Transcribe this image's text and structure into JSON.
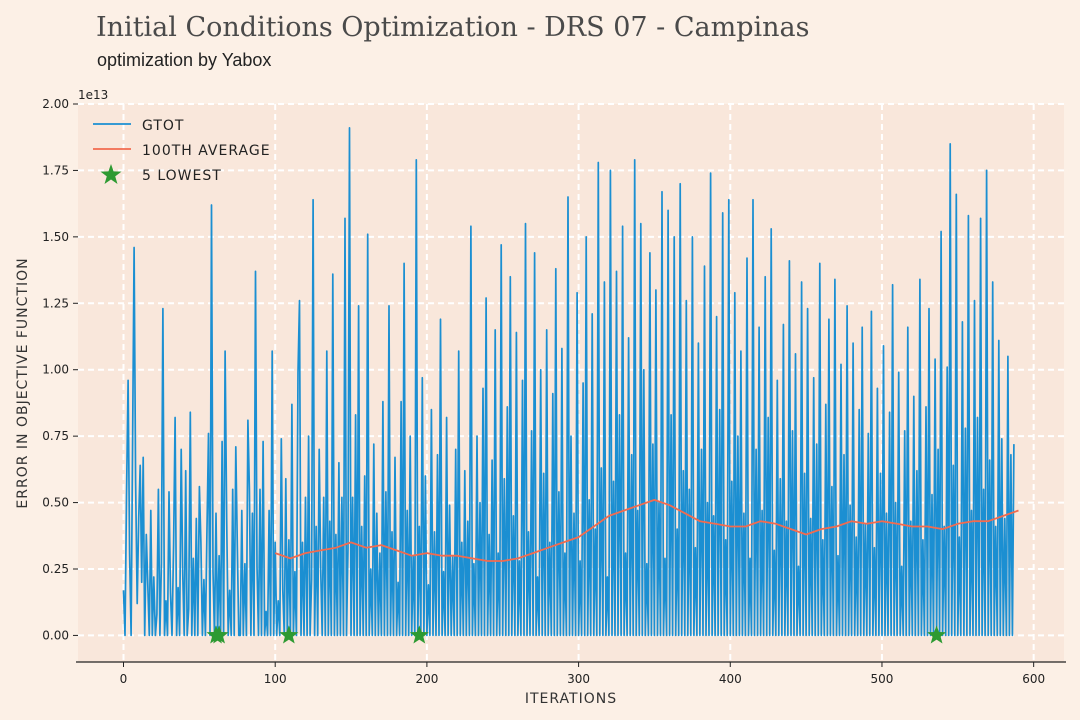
{
  "header": {
    "title": "Initial Conditions Optimization - DRS 07 - Campinas",
    "subtitle": "optimization by Yabox"
  },
  "colors": {
    "background": "#fcf0e6",
    "plot_area": "#f9e7db",
    "grid": "#ffffff",
    "gtot": "#1b8fd2",
    "average": "#f26b4f",
    "lowest": "#2e9a32"
  },
  "chart_data": {
    "type": "line",
    "xlabel": "ITERATIONS",
    "ylabel": "ERROR IN OBJECTIVE FUNCTION",
    "y_offset_label": "1e13",
    "xlim": [
      -30,
      620
    ],
    "ylim": [
      -0.1,
      2.0
    ],
    "xticks": [
      0,
      100,
      200,
      300,
      400,
      500,
      600
    ],
    "xtick_labels": [
      "0",
      "100",
      "200",
      "300",
      "400",
      "500",
      "600"
    ],
    "yticks": [
      0.0,
      0.25,
      0.5,
      0.75,
      1.0,
      1.25,
      1.5,
      1.75,
      2.0
    ],
    "ytick_labels": [
      "0.00",
      "0.25",
      "0.50",
      "0.75",
      "1.00",
      "1.25",
      "1.50",
      "1.75",
      "2.00"
    ],
    "grid": true,
    "legend_position": "top-left",
    "series": [
      {
        "name": "GTOT",
        "kind": "line",
        "color": "#1b8fd2",
        "x_start": 0,
        "x_step": 1,
        "values": [
          0.17,
          0.0,
          0.52,
          0.96,
          0.31,
          0.0,
          0.73,
          1.46,
          0.58,
          0.12,
          0.44,
          0.64,
          0.2,
          0.67,
          0.0,
          0.38,
          0.19,
          0.0,
          0.47,
          0.0,
          0.22,
          0.0,
          0.08,
          0.55,
          0.0,
          0.27,
          1.23,
          0.0,
          0.13,
          0.0,
          0.54,
          0.16,
          0.0,
          0.34,
          0.82,
          0.0,
          0.18,
          0.0,
          0.7,
          0.24,
          0.0,
          0.62,
          0.0,
          0.1,
          0.84,
          0.0,
          0.29,
          0.0,
          0.44,
          0.0,
          0.56,
          0.35,
          0.0,
          0.21,
          0.0,
          0.38,
          0.76,
          0.0,
          1.62,
          0.24,
          0.0,
          0.46,
          0.0,
          0.3,
          0.0,
          0.73,
          0.0,
          1.07,
          0.43,
          0.0,
          0.17,
          0.0,
          0.55,
          0.0,
          0.71,
          0.34,
          0.0,
          0.0,
          0.47,
          0.0,
          0.27,
          0.0,
          0.81,
          0.55,
          0.0,
          0.46,
          0.0,
          1.37,
          0.26,
          0.0,
          0.55,
          0.0,
          0.73,
          0.0,
          0.09,
          0.0,
          0.47,
          0.0,
          1.07,
          0.0,
          0.35,
          0.0,
          0.13,
          0.0,
          0.74,
          0.17,
          0.0,
          0.59,
          0.0,
          0.36,
          0.0,
          0.87,
          0.0,
          0.24,
          0.0,
          0.99,
          1.26,
          0.0,
          0.35,
          0.0,
          0.52,
          0.0,
          0.75,
          0.0,
          0.21,
          1.64,
          0.0,
          0.41,
          0.0,
          0.7,
          0.25,
          0.0,
          0.52,
          0.0,
          1.07,
          0.0,
          0.43,
          0.0,
          1.36,
          0.0,
          0.38,
          0.0,
          0.65,
          0.0,
          0.52,
          0.0,
          1.57,
          0.0,
          0.33,
          1.91,
          0.0,
          0.52,
          0.0,
          0.83,
          0.0,
          1.24,
          0.0,
          0.41,
          0.0,
          0.6,
          0.0,
          1.51,
          0.0,
          0.25,
          0.0,
          0.72,
          0.0,
          0.46,
          0.0,
          0.31,
          0.0,
          0.88,
          0.0,
          0.54,
          0.0,
          1.24,
          0.0,
          0.39,
          0.0,
          0.67,
          0.0,
          0.2,
          0.0,
          0.88,
          0.0,
          1.4,
          0.0,
          0.47,
          0.0,
          0.75,
          0.0,
          0.3,
          0.0,
          1.79,
          0.0,
          0.41,
          0.0,
          0.97,
          0.0,
          0.6,
          0.0,
          0.19,
          0.0,
          0.85,
          0.0,
          0.39,
          0.0,
          0.68,
          0.0,
          1.19,
          0.0,
          0.24,
          0.0,
          0.82,
          0.0,
          0.49,
          0.0,
          0.3,
          0.0,
          0.7,
          0.0,
          1.07,
          0.0,
          0.35,
          0.0,
          0.62,
          0.0,
          0.43,
          0.0,
          1.54,
          0.0,
          0.27,
          0.0,
          0.75,
          0.0,
          0.5,
          0.0,
          0.93,
          0.0,
          1.27,
          0.0,
          0.38,
          0.0,
          0.66,
          0.0,
          1.15,
          0.0,
          0.31,
          0.0,
          1.47,
          0.0,
          0.59,
          0.0,
          0.86,
          0.0,
          1.35,
          0.0,
          0.45,
          0.0,
          1.14,
          0.0,
          0.28,
          0.0,
          0.96,
          0.0,
          1.55,
          0.0,
          0.39,
          0.0,
          0.77,
          0.0,
          1.44,
          0.0,
          0.22,
          0.0,
          1.0,
          0.0,
          0.61,
          0.0,
          1.15,
          0.0,
          0.35,
          0.0,
          0.91,
          0.0,
          1.38,
          0.0,
          0.54,
          0.0,
          1.08,
          0.0,
          0.31,
          0.0,
          1.65,
          0.0,
          0.75,
          0.0,
          0.46,
          0.0,
          1.29,
          0.0,
          0.28,
          0.0,
          0.95,
          0.0,
          1.5,
          0.0,
          0.51,
          0.0,
          1.21,
          0.0,
          0.4,
          0.0,
          1.78,
          0.0,
          0.63,
          0.0,
          1.33,
          0.0,
          0.22,
          0.0,
          1.75,
          0.0,
          0.58,
          0.0,
          1.37,
          0.0,
          0.83,
          0.0,
          1.54,
          0.0,
          0.31,
          0.0,
          1.12,
          0.0,
          0.68,
          0.0,
          1.79,
          0.0,
          0.47,
          0.0,
          1.55,
          0.0,
          1.0,
          0.0,
          0.27,
          0.0,
          1.44,
          0.0,
          0.72,
          0.0,
          1.3,
          0.0,
          0.5,
          0.0,
          1.67,
          0.0,
          0.29,
          0.0,
          1.6,
          0.0,
          0.83,
          0.0,
          1.5,
          0.0,
          0.4,
          0.0,
          1.7,
          0.0,
          0.62,
          0.0,
          1.26,
          0.0,
          0.55,
          0.0,
          1.5,
          0.0,
          0.33,
          0.0,
          1.1,
          0.0,
          0.7,
          0.0,
          1.39,
          0.0,
          0.5,
          0.0,
          1.74,
          0.0,
          0.45,
          0.0,
          1.2,
          0.0,
          0.85,
          0.0,
          1.59,
          0.0,
          0.36,
          0.0,
          1.64,
          0.0,
          0.58,
          0.0,
          1.29,
          0.0,
          0.75,
          0.0,
          1.07,
          0.0,
          0.46,
          0.0,
          1.42,
          0.0,
          0.29,
          0.0,
          1.64,
          0.0,
          0.7,
          0.0,
          1.16,
          0.0,
          0.47,
          0.0,
          1.35,
          0.0,
          0.82,
          0.0,
          1.53,
          0.0,
          0.32,
          0.0,
          0.96,
          0.0,
          0.59,
          0.0,
          1.17,
          0.0,
          0.43,
          0.0,
          1.41,
          0.0,
          0.77,
          0.0,
          1.06,
          0.0,
          0.26,
          0.0,
          1.33,
          0.0,
          0.61,
          0.0,
          1.23,
          0.0,
          0.44,
          0.0,
          0.97,
          0.0,
          0.72,
          0.0,
          1.4,
          0.0,
          0.36,
          0.0,
          0.87,
          0.0,
          1.19,
          0.0,
          0.56,
          0.0,
          1.34,
          0.0,
          0.3,
          0.0,
          1.02,
          0.0,
          0.68,
          0.0,
          1.24,
          0.0,
          0.49,
          0.0,
          1.1,
          0.0,
          0.37,
          0.0,
          0.85,
          0.0,
          1.16,
          0.0,
          0.42,
          0.0,
          0.76,
          0.0,
          1.22,
          0.0,
          0.33,
          0.0,
          0.93,
          0.0,
          0.61,
          0.0,
          1.09,
          0.0,
          0.46,
          0.0,
          0.84,
          0.0,
          1.32,
          0.0,
          0.5,
          0.0,
          0.99,
          0.0,
          0.26,
          0.0,
          0.77,
          0.0,
          1.16,
          0.0,
          0.43,
          0.0,
          0.9,
          0.0,
          0.62,
          0.0,
          1.34,
          0.0,
          0.36,
          0.0,
          0.86,
          0.0,
          1.23,
          0.0,
          0.53,
          0.0,
          1.04,
          0.0,
          0.7,
          0.0,
          1.52,
          0.0,
          0.41,
          0.0,
          1.01,
          0.0,
          1.85,
          0.0,
          0.64,
          0.0,
          1.66,
          0.0,
          0.37,
          0.0,
          1.18,
          0.0,
          0.78,
          0.0,
          1.58,
          0.0,
          0.47,
          0.0,
          1.26,
          0.0,
          0.82,
          0.0,
          1.57,
          0.0,
          0.55,
          0.0,
          1.75,
          0.0,
          0.66,
          0.0,
          1.33,
          0.0,
          0.41,
          0.0,
          1.11,
          0.0,
          0.74,
          0.0,
          0.44,
          0.0,
          1.05,
          0.0,
          0.68,
          0.0,
          0.72
        ]
      },
      {
        "name": "100TH AVERAGE",
        "kind": "line",
        "color": "#f26b4f",
        "x": [
          100,
          110,
          120,
          130,
          140,
          150,
          160,
          170,
          180,
          190,
          200,
          210,
          220,
          230,
          240,
          250,
          260,
          270,
          280,
          290,
          300,
          310,
          320,
          330,
          340,
          350,
          360,
          370,
          380,
          390,
          400,
          410,
          420,
          430,
          440,
          450,
          460,
          470,
          480,
          490,
          500,
          510,
          520,
          530,
          540,
          550,
          560,
          570,
          580,
          590
        ],
        "values": [
          0.31,
          0.29,
          0.31,
          0.32,
          0.33,
          0.35,
          0.33,
          0.34,
          0.32,
          0.3,
          0.31,
          0.3,
          0.3,
          0.29,
          0.28,
          0.28,
          0.29,
          0.31,
          0.33,
          0.35,
          0.37,
          0.41,
          0.45,
          0.47,
          0.49,
          0.51,
          0.49,
          0.46,
          0.43,
          0.42,
          0.41,
          0.41,
          0.43,
          0.42,
          0.4,
          0.38,
          0.4,
          0.41,
          0.43,
          0.42,
          0.43,
          0.42,
          0.41,
          0.41,
          0.4,
          0.42,
          0.43,
          0.43,
          0.45,
          0.47
        ]
      },
      {
        "name": "5 LOWEST",
        "kind": "scatter",
        "color": "#2e9a32",
        "x": [
          61,
          63,
          109,
          195,
          536
        ],
        "values": [
          0.0,
          0.0,
          0.0,
          0.0,
          0.0
        ]
      }
    ]
  }
}
